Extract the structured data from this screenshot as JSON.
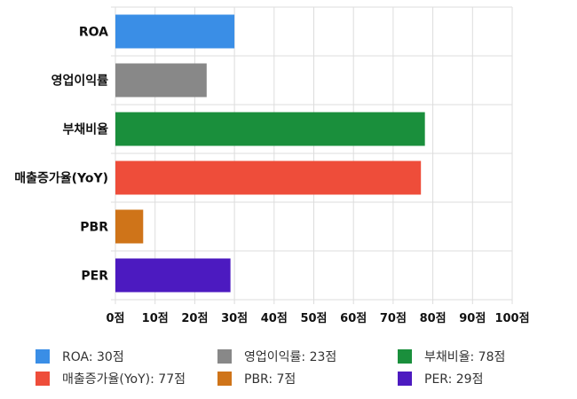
{
  "chart_data": {
    "type": "bar",
    "orientation": "horizontal",
    "categories": [
      "ROA",
      "영업이익률",
      "부채비율",
      "매출증가율(YoY)",
      "PBR",
      "PER"
    ],
    "values": [
      30,
      23,
      78,
      77,
      7,
      29
    ],
    "colors": [
      "#3a8ee6",
      "#888888",
      "#1a8f3c",
      "#ee4d3a",
      "#cf7419",
      "#4c1ac0"
    ],
    "xlim": [
      0,
      100
    ],
    "xticks": [
      0,
      10,
      20,
      30,
      40,
      50,
      60,
      70,
      80,
      90,
      100
    ],
    "tick_suffix": "점",
    "grid": true,
    "legend_position": "bottom",
    "legend": [
      "ROA: 30점",
      "영업이익률: 23점",
      "부채비율: 78점",
      "매출증가율(YoY): 77점",
      "PBR: 7점",
      "PER: 29점"
    ]
  }
}
